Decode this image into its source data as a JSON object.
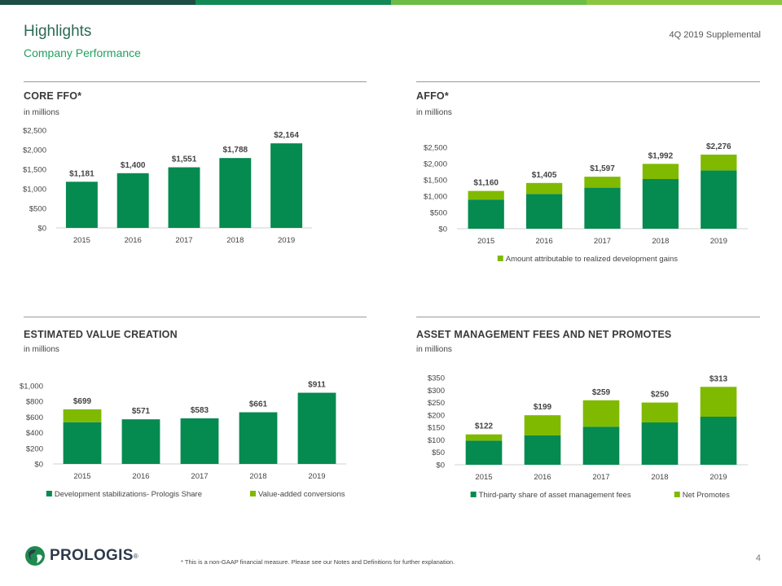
{
  "header": {
    "title": "Highlights",
    "subtitle": "Company Performance",
    "supplemental": "4Q 2019 Supplemental"
  },
  "colors": {
    "bar_top_1": "#1d4e43",
    "bar_top_2": "#138a55",
    "bar_top_3": "#6cbd45",
    "bar_top_4": "#8cc63f",
    "dark_green": "#058a50",
    "light_green": "#7fba00",
    "title_green": "#22a060"
  },
  "chart_data": [
    {
      "id": "core-ffo",
      "type": "bar",
      "title": "CORE FFO*",
      "unit": "in millions",
      "categories": [
        "2015",
        "2016",
        "2017",
        "2018",
        "2019"
      ],
      "series": [
        {
          "values": [
            1181,
            1400,
            1551,
            1788,
            2164
          ]
        }
      ],
      "totals": [
        "$1,181",
        "$1,400",
        "$1,551",
        "$1,788",
        "$2,164"
      ],
      "ylim": [
        0,
        2500
      ],
      "yticks": [
        "$0",
        "$500",
        "$1,000",
        "$1,500",
        "$2,000",
        "$2,500"
      ]
    },
    {
      "id": "affo",
      "type": "bar",
      "stacked": true,
      "title": "AFFO*",
      "unit": "in millions",
      "categories": [
        "2015",
        "2016",
        "2017",
        "2018",
        "2019"
      ],
      "series": [
        {
          "values": [
            895,
            1065,
            1260,
            1525,
            1790
          ]
        },
        {
          "name": "Amount attributable to realized development gains",
          "values": [
            265,
            340,
            337,
            467,
            486
          ]
        }
      ],
      "totals": [
        "$1,160",
        "$1,405",
        "$1,597",
        "$1,992",
        "$2,276"
      ],
      "ylim": [
        0,
        2500
      ],
      "yticks": [
        "$0",
        "$500",
        "$1,000",
        "$1,500",
        "$2,000",
        "$2,500"
      ],
      "legend": [
        "Amount attributable to realized development gains"
      ]
    },
    {
      "id": "value-creation",
      "type": "bar",
      "stacked": true,
      "title": "ESTIMATED VALUE CREATION",
      "unit": "in millions",
      "categories": [
        "2015",
        "2016",
        "2017",
        "2018",
        "2019"
      ],
      "series": [
        {
          "name": "Development stabilizations- Prologis Share",
          "values": [
            534,
            571,
            583,
            661,
            911
          ]
        },
        {
          "name": "Value-added conversions",
          "values": [
            165,
            0,
            0,
            0,
            0
          ]
        }
      ],
      "totals": [
        "$699",
        "$571",
        "$583",
        "$661",
        "$911"
      ],
      "ylim": [
        0,
        1000
      ],
      "yticks": [
        "$0",
        "$200",
        "$400",
        "$600",
        "$800",
        "$1,000"
      ],
      "legend": [
        "Development stabilizations- Prologis Share",
        "Value-added conversions"
      ]
    },
    {
      "id": "asset-mgmt",
      "type": "bar",
      "stacked": true,
      "title": "ASSET MANAGEMENT FEES AND NET PROMOTES",
      "unit": "in millions",
      "categories": [
        "2015",
        "2016",
        "2017",
        "2018",
        "2019"
      ],
      "series": [
        {
          "name": "Third-party share of asset management fees",
          "values": [
            97,
            118,
            153,
            170,
            193
          ]
        },
        {
          "name": "Net Promotes",
          "values": [
            25,
            81,
            106,
            80,
            120
          ]
        }
      ],
      "totals": [
        "$122",
        "$199",
        "$259",
        "$250",
        "$313"
      ],
      "ylim": [
        0,
        350
      ],
      "yticks": [
        "$0",
        "$50",
        "$100",
        "$150",
        "$200",
        "$250",
        "$300",
        "$350"
      ],
      "legend": [
        "Third-party share of asset management fees",
        "Net Promotes"
      ]
    }
  ],
  "footer": {
    "logo_text": "PROLOGIS",
    "logo_reg": "®",
    "footnote": "* This is a non-GAAP financial measure.  Please see our Notes and Definitions for further explanation.",
    "page_number": "4"
  }
}
